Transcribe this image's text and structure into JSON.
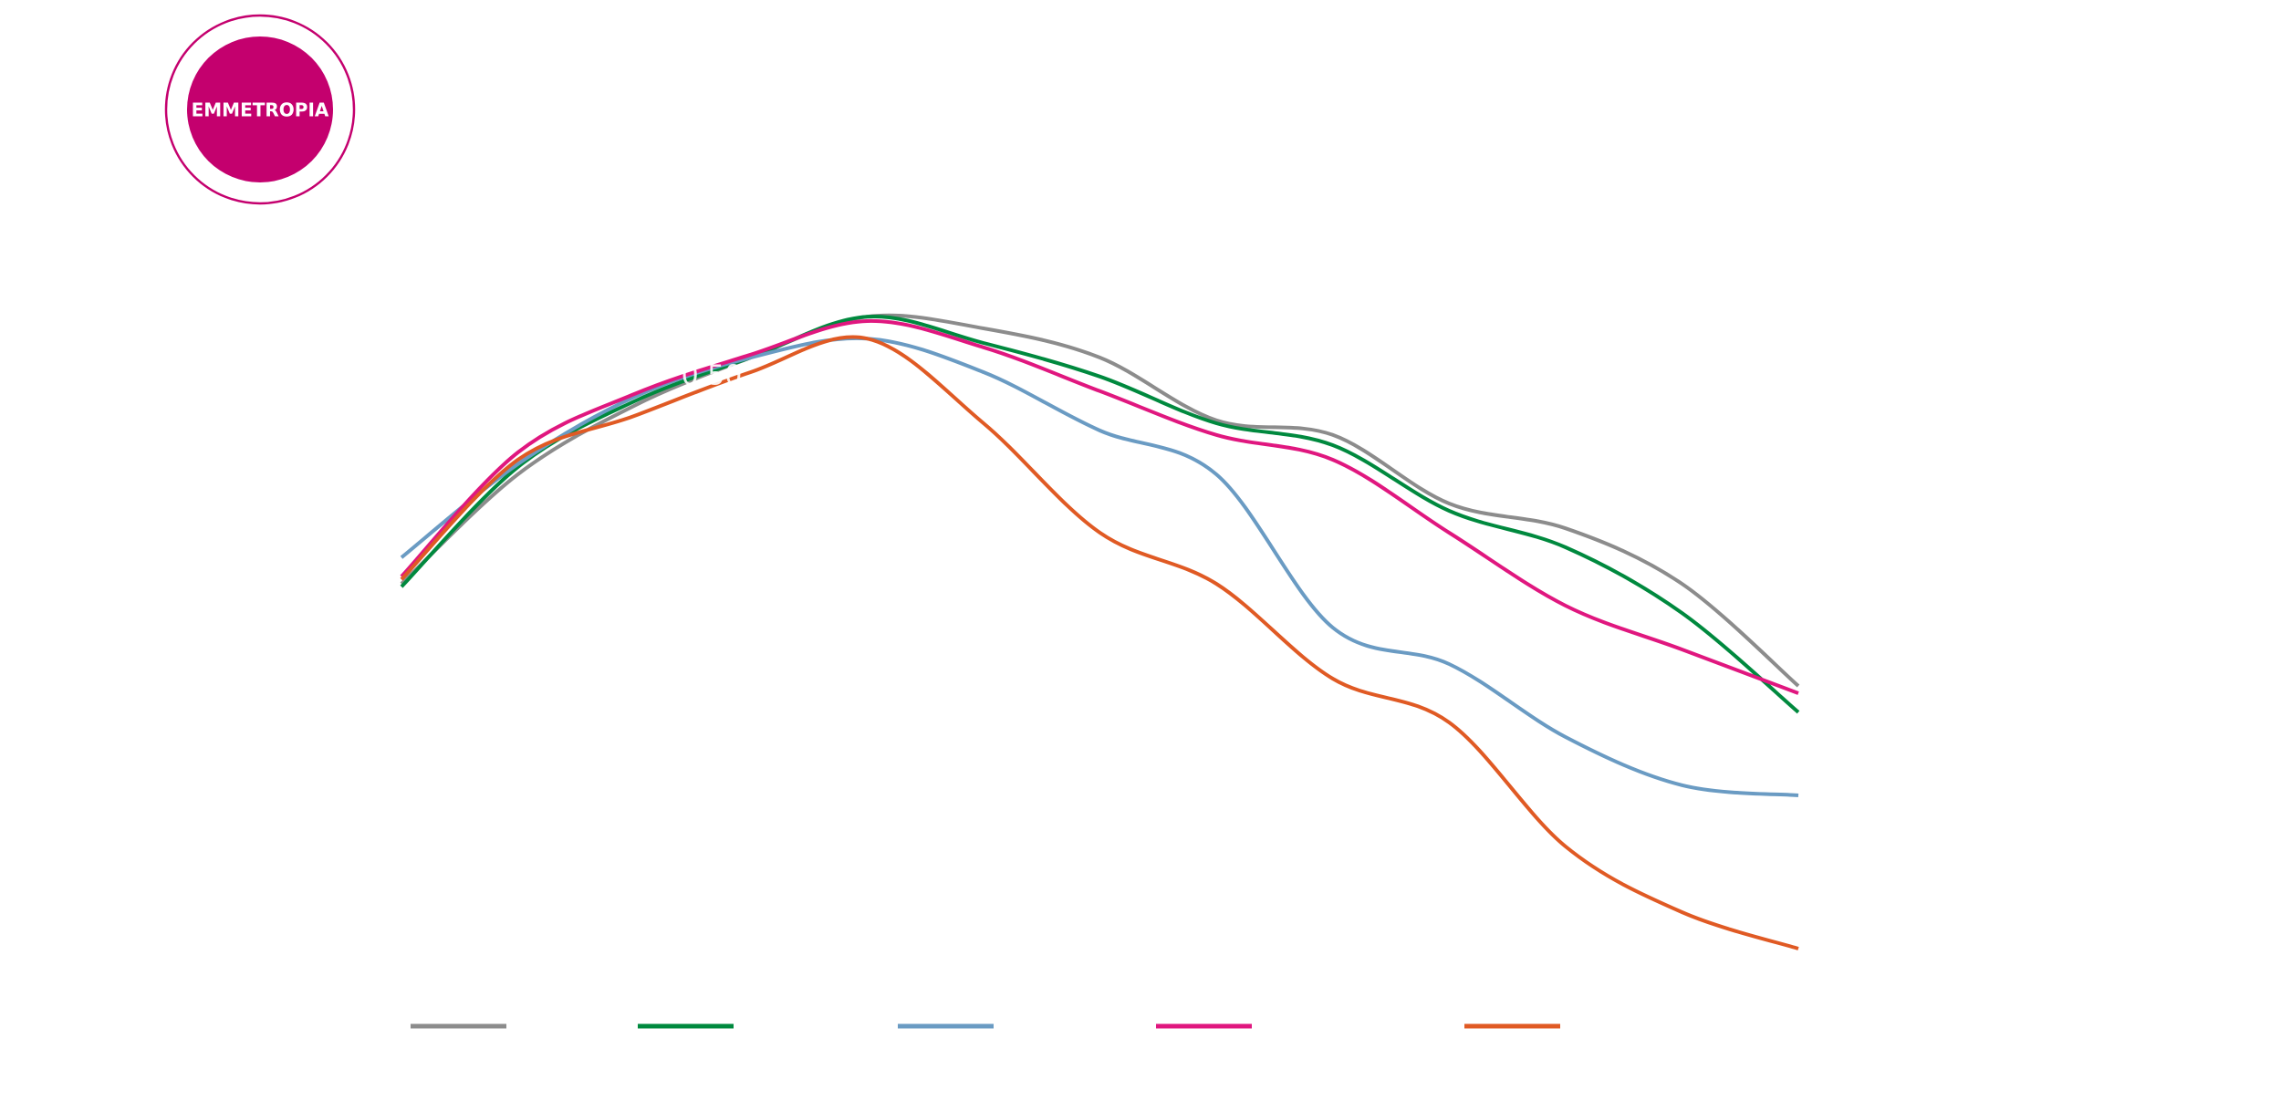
{
  "badge": {
    "label": "EMMETROPIA"
  },
  "chart_data": {
    "type": "line",
    "annotation": "0.50",
    "categories": [
      null,
      null,
      null,
      null,
      null,
      null,
      null,
      null,
      null,
      null,
      null,
      null,
      null
    ],
    "ylim": [
      0,
      700
    ],
    "series": [
      {
        "color": "#8c8c8c",
        "values": [
          300,
          375,
          422,
          455,
          483,
          475,
          455,
          412,
          402,
          355,
          338,
          300,
          230
        ]
      },
      {
        "color": "#00893e",
        "values": [
          298,
          380,
          425,
          455,
          483,
          465,
          442,
          410,
          395,
          350,
          325,
          280,
          212
        ]
      },
      {
        "color": "#6a9bc3",
        "values": [
          318,
          382,
          428,
          455,
          468,
          445,
          405,
          375,
          270,
          245,
          195,
          162,
          155
        ]
      },
      {
        "color": "#e0177f",
        "values": [
          305,
          390,
          430,
          457,
          480,
          462,
          432,
          402,
          385,
          335,
          285,
          255,
          225
        ]
      },
      {
        "color": "#e05a24",
        "values": [
          303,
          385,
          415,
          445,
          468,
          410,
          335,
          300,
          235,
          205,
          120,
          75,
          50
        ]
      }
    ]
  }
}
